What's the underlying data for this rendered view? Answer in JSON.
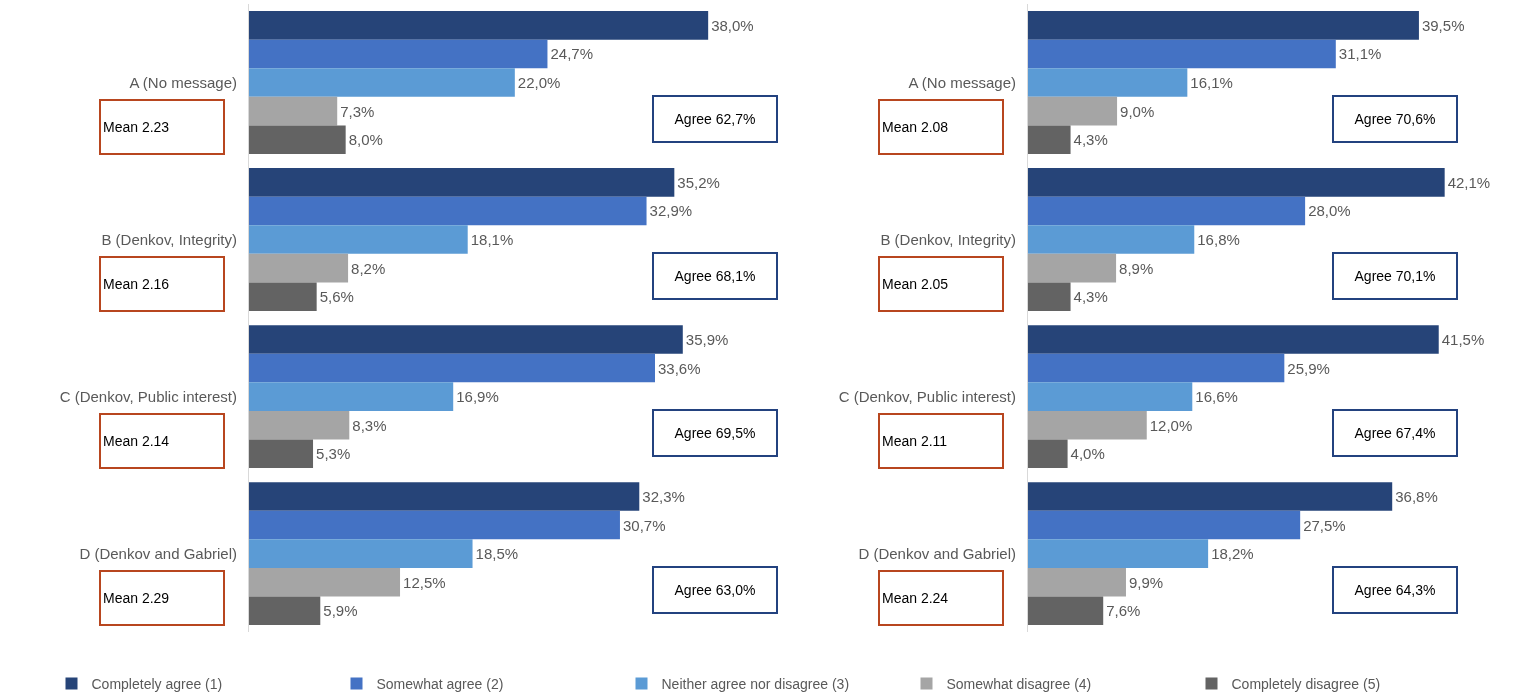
{
  "chart_data": [
    {
      "type": "bar",
      "orientation": "horizontal",
      "legend": "bottom",
      "tick_labels": "y",
      "categories": [
        "A (No message)",
        "B (Denkov, Integrity)",
        "C (Denkov, Public interest)",
        "D (Denkov and Gabriel)"
      ],
      "series": [
        {
          "name": "Completely agree (1)",
          "color": "#264478",
          "values": [
            38.0,
            35.2,
            35.9,
            32.3
          ],
          "value_labels": [
            "38,0%",
            "35,2%",
            "35,9%",
            "32,3%"
          ]
        },
        {
          "name": "Somewhat agree (2)",
          "color": "#4472c4",
          "values": [
            24.7,
            32.9,
            33.6,
            30.7
          ],
          "value_labels": [
            "24,7%",
            "32,9%",
            "33,6%",
            "30,7%"
          ]
        },
        {
          "name": "Neither agree nor disagree (3)",
          "color": "#5b9bd5",
          "values": [
            22.0,
            18.1,
            16.9,
            18.5
          ],
          "value_labels": [
            "22,0%",
            "18,1%",
            "16,9%",
            "18,5%"
          ]
        },
        {
          "name": "Somewhat disagree (4)",
          "color": "#a5a5a5",
          "values": [
            7.3,
            8.2,
            8.3,
            12.5
          ],
          "value_labels": [
            "7,3%",
            "8,2%",
            "8,3%",
            "12,5%"
          ]
        },
        {
          "name": "Completely disagree (5)",
          "color": "#636363",
          "values": [
            8.0,
            5.6,
            5.3,
            5.9
          ],
          "value_labels": [
            "8,0%",
            "5,6%",
            "5,3%",
            "5,9%"
          ]
        }
      ],
      "annotations": [
        "Mean 2.23",
        "Agree 62,7%",
        "Mean 2.16",
        "Agree 68,1%",
        "Mean 2.14",
        "Agree 69,5%",
        "Mean 2.29",
        "Agree 63,0%"
      ]
    },
    {
      "type": "bar",
      "orientation": "horizontal",
      "legend": "bottom",
      "tick_labels": "y",
      "categories": [
        "A (No message)",
        "B (Denkov, Integrity)",
        "C (Denkov, Public interest)",
        "D (Denkov and Gabriel)"
      ],
      "series": [
        {
          "name": "Completely agree (1)",
          "color": "#264478",
          "values": [
            39.5,
            42.1,
            41.5,
            36.8
          ],
          "value_labels": [
            "39,5%",
            "42,1%",
            "41,5%",
            "36,8%"
          ]
        },
        {
          "name": "Somewhat agree (2)",
          "color": "#4472c4",
          "values": [
            31.1,
            28.0,
            25.9,
            27.5
          ],
          "value_labels": [
            "31,1%",
            "28,0%",
            "25,9%",
            "27,5%"
          ]
        },
        {
          "name": "Neither agree nor disagree (3)",
          "color": "#5b9bd5",
          "values": [
            16.1,
            16.8,
            16.6,
            18.2
          ],
          "value_labels": [
            "16,1%",
            "16,8%",
            "16,6%",
            "18,2%"
          ]
        },
        {
          "name": "Somewhat disagree (4)",
          "color": "#a5a5a5",
          "values": [
            9.0,
            8.9,
            12.0,
            9.9
          ],
          "value_labels": [
            "9,0%",
            "8,9%",
            "12,0%",
            "9,9%"
          ]
        },
        {
          "name": "Completely disagree (5)",
          "color": "#636363",
          "values": [
            4.3,
            4.3,
            4.0,
            7.6
          ],
          "value_labels": [
            "4,3%",
            "4,3%",
            "4,0%",
            "7,6%"
          ]
        }
      ],
      "annotations": [
        "Mean 2.08",
        "Agree 70,6%",
        "Mean 2.05",
        "Agree 70,1%",
        "Mean 2.11",
        "Agree 67,4%",
        "Mean 2.24",
        "Agree 64,3%"
      ]
    }
  ]
}
